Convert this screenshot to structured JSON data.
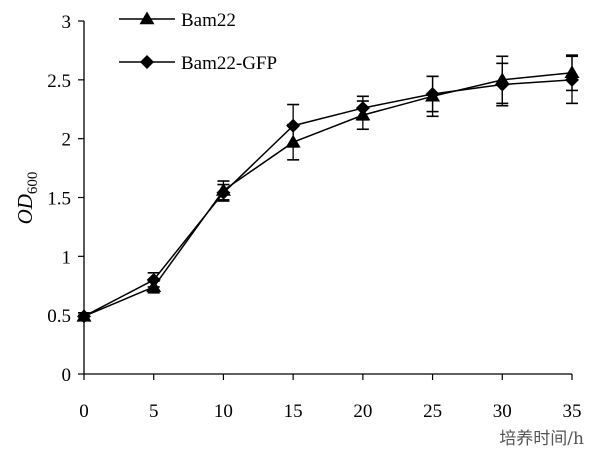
{
  "chart_data": {
    "type": "line",
    "title": "",
    "xlabel": "培养时间/h",
    "ylabel_main": "OD",
    "ylabel_sub": "600",
    "x": [
      0,
      5,
      10,
      15,
      20,
      25,
      30,
      35
    ],
    "xlim": [
      0,
      35
    ],
    "ylim": [
      0,
      3
    ],
    "xticks": [
      "0",
      "5",
      "10",
      "15",
      "20",
      "25",
      "30",
      "35"
    ],
    "yticks": [
      "0",
      "0.5",
      "1",
      "1.5",
      "2",
      "2.5",
      "3"
    ],
    "grid": false,
    "legend_position": "top-left",
    "series": [
      {
        "name": "Bam22",
        "marker": "triangle",
        "values": [
          0.49,
          0.74,
          1.56,
          1.97,
          2.2,
          2.36,
          2.5,
          2.56
        ],
        "errors": [
          0.03,
          0.05,
          0.08,
          0.15,
          0.12,
          0.17,
          0.2,
          0.15
        ]
      },
      {
        "name": "Bam22-GFP",
        "marker": "diamond",
        "values": [
          0.49,
          0.8,
          1.54,
          2.11,
          2.26,
          2.38,
          2.46,
          2.5
        ],
        "errors": [
          0.03,
          0.06,
          0.07,
          0.18,
          0.1,
          0.15,
          0.18,
          0.2
        ]
      }
    ],
    "color": "#000000"
  }
}
